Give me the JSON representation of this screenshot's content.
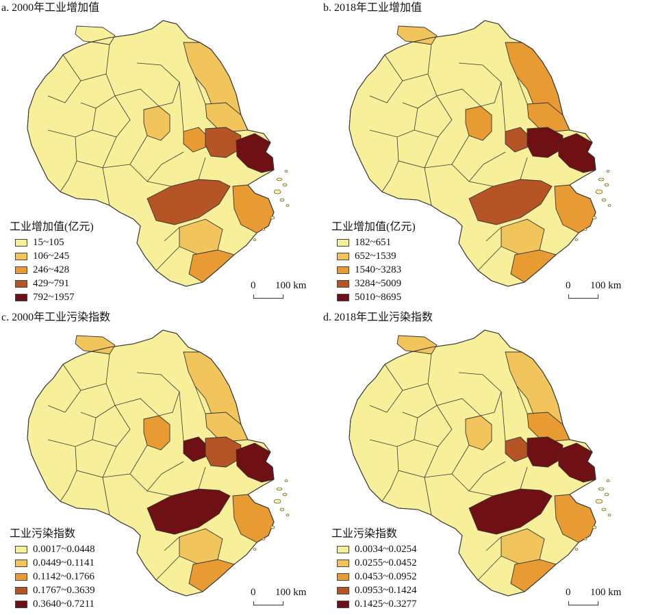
{
  "colors": {
    "c1": "#f7ef9a",
    "c2": "#f2c45c",
    "c3": "#e79b32",
    "c4": "#b55424",
    "c5": "#6e1014",
    "border": "#333333"
  },
  "panels": [
    {
      "title": "a. 2000年工业增加值",
      "legend_title": "工业增加值(亿元)",
      "classes": [
        "15~105",
        "106~245",
        "246~428",
        "429~791",
        "792~1957"
      ],
      "scale": {
        "zero": "0",
        "dist": "100 km"
      },
      "hl": {
        "north": 1,
        "nw": 2,
        "ne": 2,
        "jl": 3,
        "su": 4,
        "hang": 4,
        "sh": 5
      }
    },
    {
      "title": "b. 2018年工业增加值",
      "legend_title": "工业增加值(亿元)",
      "classes": [
        "182~651",
        "652~1539",
        "1540~3283",
        "3284~5009",
        "5010~8695"
      ],
      "scale": {
        "zero": "0",
        "dist": "100 km"
      },
      "hl": {
        "north": 2,
        "nw": 3,
        "ne": 3,
        "jl": 4,
        "su": 5,
        "hang": 4,
        "sh": 5
      }
    },
    {
      "title": "c. 2000年工业污染指数",
      "legend_title": "工业污染指数",
      "classes": [
        "0.0017~0.0448",
        "0.0449~0.1141",
        "0.1142~0.1766",
        "0.1767~0.3639",
        "0.3640~0.7211"
      ],
      "scale": {
        "zero": "0",
        "dist": "100 km"
      },
      "hl": {
        "north": 2,
        "nw": 3,
        "ne": 2,
        "jl": 5,
        "su": 4,
        "hang": 5,
        "sh": 5
      }
    },
    {
      "title": "d. 2018年工业污染指数",
      "legend_title": "工业污染指数",
      "classes": [
        "0.0034~0.0254",
        "0.0255~0.0452",
        "0.0453~0.0952",
        "0.0953~0.1424",
        "0.1425~0.3277"
      ],
      "scale": {
        "zero": "0",
        "dist": "100 km"
      },
      "hl": {
        "north": 2,
        "nw": 2,
        "ne": 3,
        "jl": 4,
        "su": 5,
        "hang": 5,
        "sh": 5
      }
    }
  ]
}
